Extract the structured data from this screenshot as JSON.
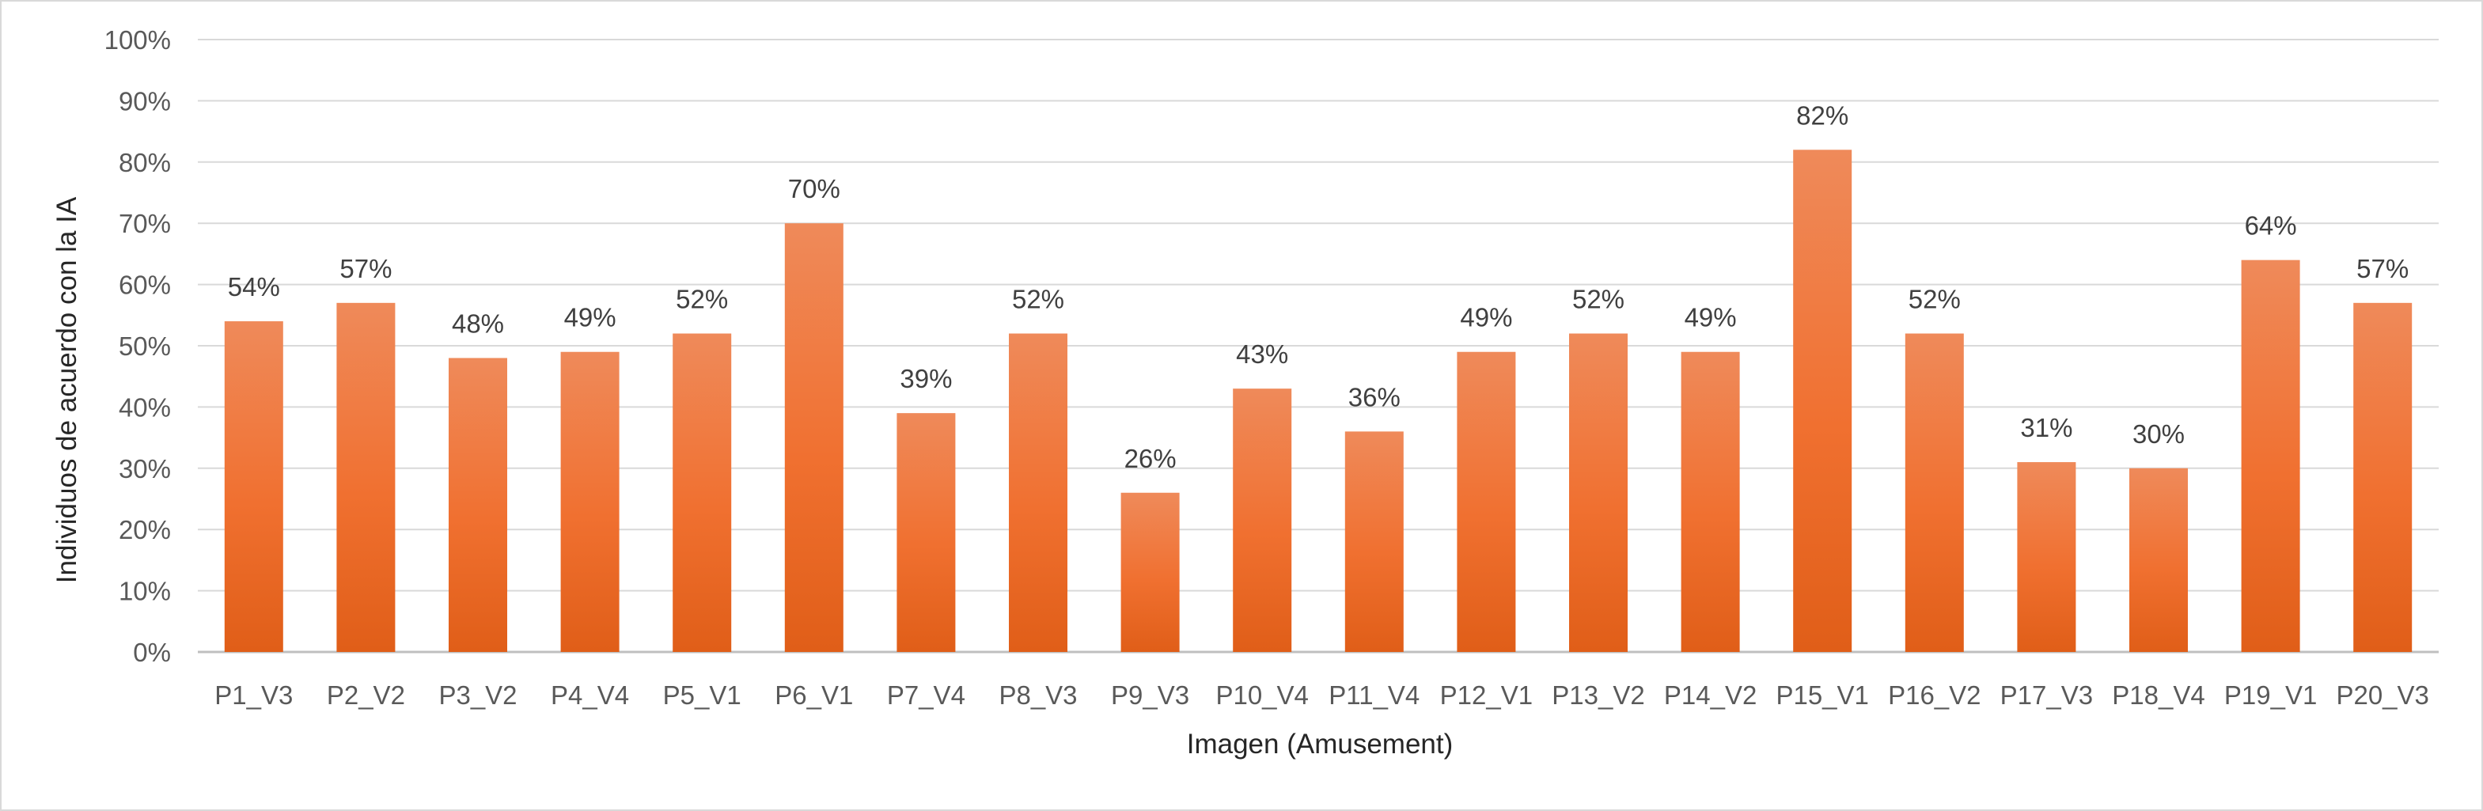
{
  "chart_data": {
    "type": "bar",
    "title": "",
    "xlabel": "Imagen (Amusement)",
    "ylabel": "Individuos de acuerdo con la IA",
    "ylim": [
      0,
      100
    ],
    "yticks": [
      0,
      10,
      20,
      30,
      40,
      50,
      60,
      70,
      80,
      90,
      100
    ],
    "ytick_labels": [
      "0%",
      "10%",
      "20%",
      "30%",
      "40%",
      "50%",
      "60%",
      "70%",
      "80%",
      "90%",
      "100%"
    ],
    "grid": true,
    "legend": "none",
    "categories": [
      "P1_V3",
      "P2_V2",
      "P3_V2",
      "P4_V4",
      "P5_V1",
      "P6_V1",
      "P7_V4",
      "P8_V3",
      "P9_V3",
      "P10_V4",
      "P11_V4",
      "P12_V1",
      "P13_V2",
      "P14_V2",
      "P15_V1",
      "P16_V2",
      "P17_V3",
      "P18_V4",
      "P19_V1",
      "P20_V3"
    ],
    "values": [
      54,
      57,
      48,
      49,
      52,
      70,
      39,
      52,
      26,
      43,
      36,
      49,
      52,
      49,
      82,
      52,
      31,
      30,
      64,
      57
    ],
    "value_labels": [
      "54%",
      "57%",
      "48%",
      "49%",
      "52%",
      "70%",
      "39%",
      "52%",
      "26%",
      "43%",
      "36%",
      "49%",
      "52%",
      "49%",
      "82%",
      "52%",
      "31%",
      "30%",
      "64%",
      "57%"
    ],
    "colors": {
      "bar_top": "#ef8a5a",
      "bar_mid": "#f07030",
      "bar_bottom": "#e05e18",
      "grid": "#d9d9d9",
      "axis": "#bfbfbf"
    }
  }
}
